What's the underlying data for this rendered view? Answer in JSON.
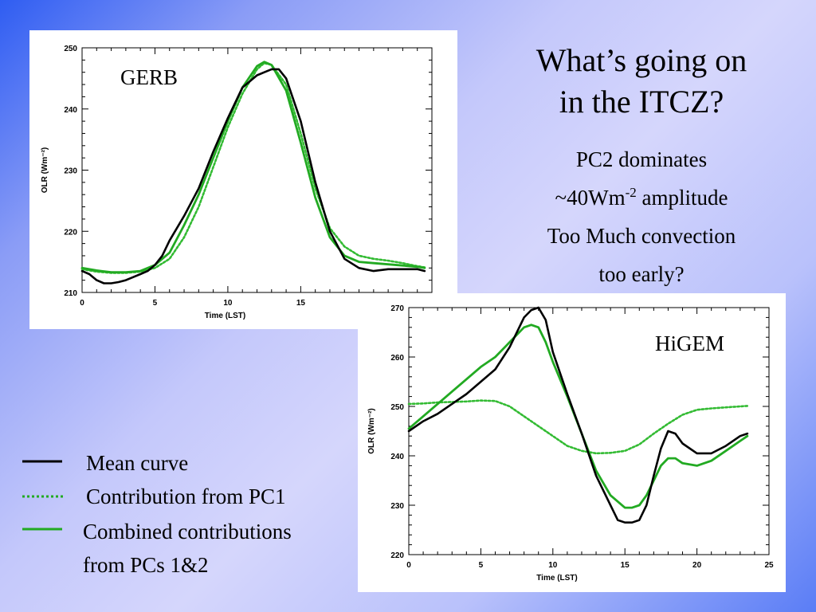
{
  "slide": {
    "title_line1": "What’s going on",
    "title_line2": "in the ITCZ?",
    "bullet1": "PC2 dominates",
    "bullet2_prefix": "~40Wm",
    "bullet2_sup": "-2",
    "bullet2_suffix": " amplitude",
    "bullet3_line1": "Too Much convection",
    "bullet3_line2": "too early?"
  },
  "legend": {
    "items": [
      {
        "label": "Mean curve",
        "style": "solid",
        "color": "#000000"
      },
      {
        "label": "Contribution from PC1",
        "style": "dotted",
        "color": "#22aa22"
      },
      {
        "label_line1": "Combined contributions",
        "label_line2": "from PCs 1&2",
        "style": "solid",
        "color": "#22aa22"
      }
    ]
  },
  "colors": {
    "mean": "#000000",
    "pc1": "#33bb33",
    "combined": "#22aa22"
  },
  "chart_data": [
    {
      "type": "line",
      "tag": "GERB",
      "xlabel": "Time (LST)",
      "ylabel": "OLR (Wm⁻²)",
      "xlim": [
        0,
        24
      ],
      "ylim": [
        210,
        250
      ],
      "xticks": [
        0,
        5,
        10,
        15
      ],
      "yticks": [
        210,
        220,
        230,
        240,
        250
      ],
      "series": [
        {
          "key": "mean",
          "x": [
            0,
            0.5,
            1,
            1.5,
            2,
            2.5,
            3,
            3.5,
            4,
            4.5,
            5,
            5.5,
            6,
            7,
            8,
            9,
            10,
            11,
            12,
            12.5,
            13,
            13.5,
            14,
            15,
            16,
            17,
            18,
            19,
            20,
            21,
            22,
            23,
            23.5
          ],
          "y": [
            213.5,
            213,
            212,
            211.5,
            211.5,
            211.7,
            212,
            212.5,
            213,
            213.5,
            214.5,
            216,
            218.5,
            222.5,
            227,
            233,
            238.5,
            243.5,
            245.5,
            246,
            246.5,
            246.5,
            245,
            238,
            228,
            220,
            215.5,
            214,
            213.5,
            213.8,
            213.8,
            213.8,
            213.5
          ]
        },
        {
          "key": "pc1",
          "x": [
            0,
            1,
            2,
            3,
            4,
            5,
            6,
            7,
            8,
            9,
            10,
            11,
            12,
            12.5,
            13,
            14,
            15,
            16,
            17,
            18,
            19,
            20,
            21,
            22,
            23,
            23.5
          ],
          "y": [
            213.8,
            213.4,
            213.2,
            213.2,
            213.4,
            214,
            215.5,
            219,
            224,
            230.5,
            237,
            242.5,
            246.5,
            247.5,
            247.2,
            244,
            236,
            227,
            220.5,
            217.5,
            216,
            215.5,
            215.2,
            214.8,
            214.3,
            214.1
          ]
        },
        {
          "key": "combined",
          "x": [
            0,
            1,
            2,
            3,
            4,
            5,
            6,
            7,
            8,
            9,
            10,
            11,
            12,
            12.5,
            13,
            14,
            15,
            16,
            17,
            18,
            19,
            20,
            21,
            22,
            23,
            23.5
          ],
          "y": [
            214,
            213.6,
            213.3,
            213.3,
            213.5,
            214.5,
            216.5,
            221,
            226,
            232,
            238,
            243.5,
            247,
            247.7,
            247.2,
            243,
            234.5,
            225.5,
            219,
            216,
            215,
            214.8,
            214.6,
            214.4,
            214.2,
            214
          ]
        }
      ]
    },
    {
      "type": "line",
      "tag": "HiGEM",
      "xlabel": "Time (LST)",
      "ylabel": "OLR (Wm⁻²)",
      "xlim": [
        0,
        25
      ],
      "ylim": [
        220,
        270
      ],
      "xticks": [
        0,
        5,
        10,
        15,
        20,
        25
      ],
      "yticks": [
        220,
        230,
        240,
        250,
        260,
        270
      ],
      "series": [
        {
          "key": "mean",
          "x": [
            0,
            1,
            2,
            3,
            4,
            5,
            6,
            7,
            8,
            8.5,
            9,
            9.5,
            10,
            11,
            12,
            13,
            14,
            14.5,
            15,
            15.5,
            16,
            16.5,
            17,
            17.5,
            18,
            18.5,
            19,
            20,
            21,
            22,
            23,
            23.5
          ],
          "y": [
            245,
            247,
            248.5,
            250.5,
            252.5,
            255,
            257.5,
            262,
            268,
            269.5,
            270,
            267.5,
            261,
            252.5,
            244.5,
            236,
            230,
            227,
            226.5,
            226.5,
            227,
            230,
            236,
            241.5,
            245,
            244.5,
            242.5,
            240.5,
            240.5,
            242,
            244,
            244.5
          ]
        },
        {
          "key": "pc1",
          "x": [
            0,
            1,
            2,
            3,
            4,
            5,
            6,
            7,
            8,
            9,
            10,
            11,
            12,
            13,
            14,
            15,
            16,
            17,
            18,
            19,
            20,
            21,
            22,
            23,
            23.5
          ],
          "y": [
            250.5,
            250.6,
            250.8,
            250.9,
            251,
            251.2,
            251.1,
            250,
            248,
            246,
            244,
            242,
            241,
            240.5,
            240.6,
            241,
            242.3,
            244.5,
            246.5,
            248.3,
            249.3,
            249.6,
            249.8,
            250,
            250.1
          ]
        },
        {
          "key": "combined",
          "x": [
            0,
            1,
            2,
            3,
            4,
            5,
            6,
            7,
            8,
            8.5,
            9,
            9.5,
            10,
            11,
            12,
            13,
            14,
            15,
            15.5,
            16,
            16.5,
            17,
            17.5,
            18,
            18.5,
            19,
            20,
            21,
            22,
            23,
            23.5
          ],
          "y": [
            245.5,
            248,
            250.5,
            253,
            255.5,
            258,
            260,
            263,
            266,
            266.5,
            266,
            263,
            259,
            252,
            244.5,
            237,
            232,
            229.5,
            229.5,
            230,
            232,
            235,
            238,
            239.5,
            239.5,
            238.5,
            238,
            239,
            241,
            243,
            244
          ]
        }
      ]
    }
  ]
}
